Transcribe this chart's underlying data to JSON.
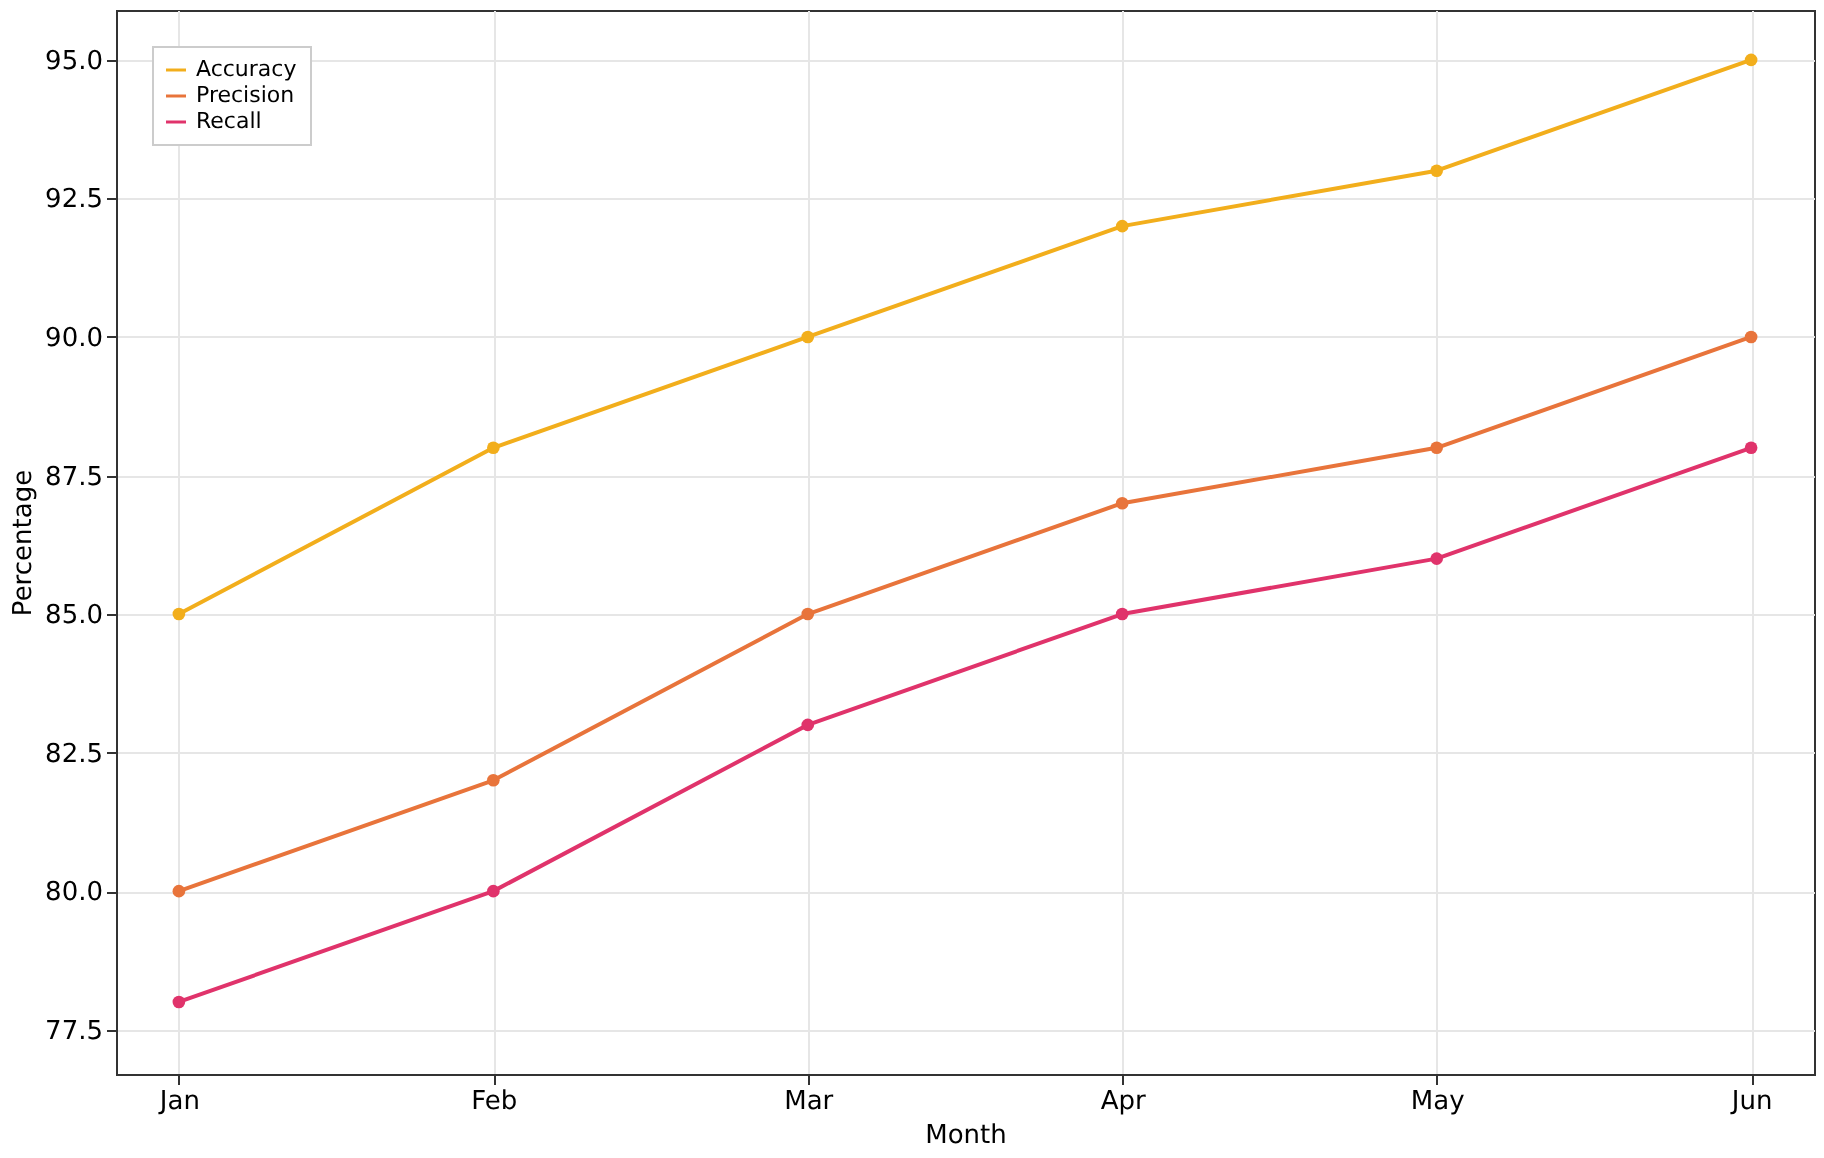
{
  "chart_data": {
    "type": "line",
    "xlabel": "Month",
    "ylabel": "Percentage",
    "categories": [
      "Jan",
      "Feb",
      "Mar",
      "Apr",
      "May",
      "Jun"
    ],
    "series": [
      {
        "name": "Accuracy",
        "color": "#f2ae1c",
        "values": [
          85,
          88,
          90,
          92,
          93,
          95
        ]
      },
      {
        "name": "Precision",
        "color": "#e8743b",
        "values": [
          80,
          82,
          85,
          87,
          88,
          90
        ]
      },
      {
        "name": "Recall",
        "color": "#e0336b",
        "values": [
          78,
          80,
          83,
          85,
          86,
          88
        ]
      }
    ],
    "ylim": [
      76.7,
      95.9
    ],
    "yticks": [
      {
        "value": 77.5,
        "label": "77.5"
      },
      {
        "value": 80,
        "label": "80.0"
      },
      {
        "value": 82.5,
        "label": "82.5"
      },
      {
        "value": 85,
        "label": "85.0"
      },
      {
        "value": 87.5,
        "label": "87.5"
      },
      {
        "value": 90,
        "label": "90.0"
      },
      {
        "value": 92.5,
        "label": "92.5"
      },
      {
        "value": 95,
        "label": "95.0"
      }
    ],
    "grid": true,
    "legend": "top left",
    "marker": "circle",
    "line_style": "solid"
  }
}
